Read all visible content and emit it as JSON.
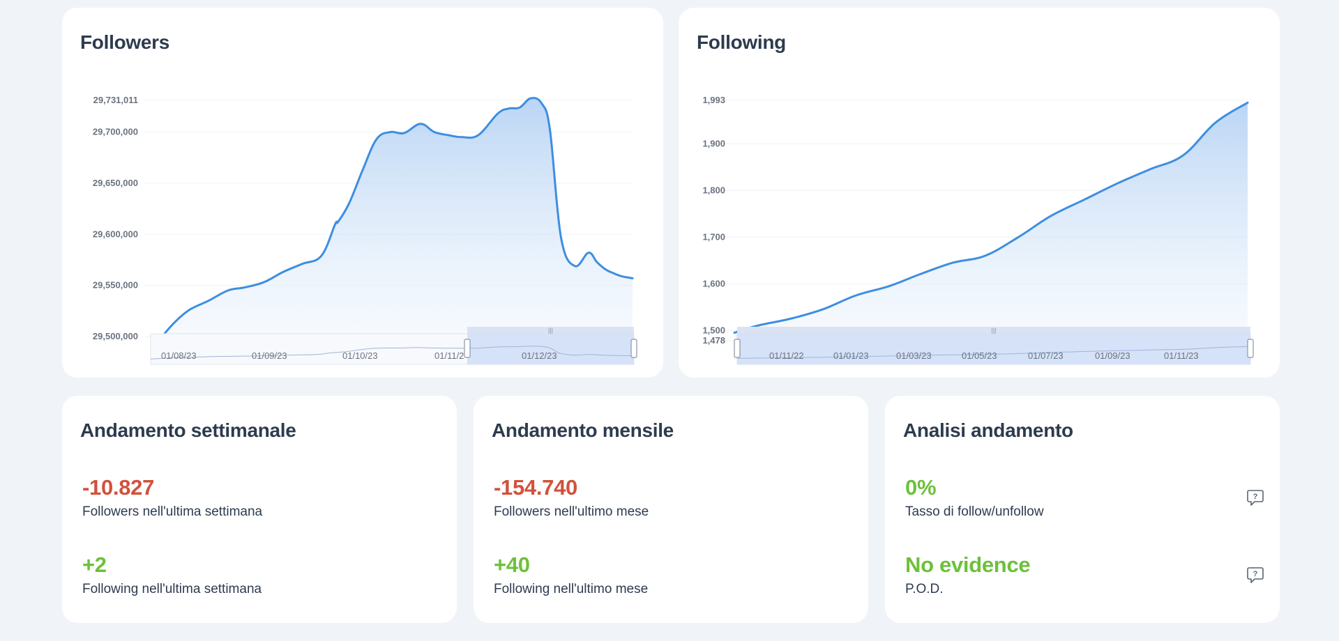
{
  "followers_card": {
    "title": "Followers"
  },
  "following_card": {
    "title": "Following"
  },
  "weekly_card": {
    "title": "Andamento settimanale",
    "followers_value": "-10.827",
    "followers_label": "Followers nell'ultima settimana",
    "following_value": "+2",
    "following_label": "Following nell'ultima settimana"
  },
  "monthly_card": {
    "title": "Andamento mensile",
    "followers_value": "-154.740",
    "followers_label": "Followers nell'ultimo mese",
    "following_value": "+40",
    "following_label": "Following nell'ultimo mese"
  },
  "analysis_card": {
    "title": "Analisi andamento",
    "rate_value": "0%",
    "rate_label": "Tasso di follow/unfollow",
    "pod_value": "No evidence",
    "pod_label": "P.O.D."
  },
  "colors": {
    "line": "#3d8ee0",
    "negative": "#d2513a",
    "positive": "#6cc13a"
  },
  "chart_data": [
    {
      "type": "area",
      "title": "Followers",
      "x_unit": "date",
      "yticks": [
        29500000,
        29550000,
        29600000,
        29650000,
        29700000,
        29731011
      ],
      "ytick_labels": [
        "29,500,000",
        "29,550,000",
        "29,600,000",
        "29,650,000",
        "29,700,000",
        "29,731,011"
      ],
      "ylim": [
        29500000,
        29731011
      ],
      "xlim": [
        "2023-07-28",
        "2024-01-16"
      ],
      "navigator_xticks": [
        "01/08/23",
        "01/09/23",
        "01/10/23",
        "01/11/2",
        "01/12/23"
      ],
      "grid": true,
      "series": [
        {
          "x": [
            "2023-07-28",
            "2023-08-02",
            "2023-08-08",
            "2023-08-15",
            "2023-08-22",
            "2023-08-28",
            "2023-09-04",
            "2023-09-11",
            "2023-09-18",
            "2023-09-25",
            "2023-09-30",
            "2023-10-01",
            "2023-10-05",
            "2023-10-10",
            "2023-10-15",
            "2023-10-20",
            "2023-10-25",
            "2023-10-31",
            "2023-11-05",
            "2023-11-10",
            "2023-11-15",
            "2023-11-21",
            "2023-11-28",
            "2023-12-02",
            "2023-12-06",
            "2023-12-10",
            "2023-12-14",
            "2023-12-17",
            "2023-12-21",
            "2023-12-26",
            "2023-12-31",
            "2024-01-03",
            "2024-01-06",
            "2024-01-09",
            "2024-01-12",
            "2024-01-16"
          ],
          "y": [
            29496000,
            29512000,
            29526000,
            29535000,
            29545000,
            29548000,
            29553000,
            29563000,
            29571000,
            29579000,
            29610000,
            29612000,
            29630000,
            29663000,
            29693000,
            29700000,
            29699000,
            29708000,
            29700000,
            29697000,
            29695000,
            29697000,
            29718000,
            29723000,
            29724000,
            29733000,
            29728000,
            29702000,
            29597000,
            29569000,
            29582000,
            29573000,
            29566000,
            29562000,
            29559000,
            29557000
          ]
        }
      ]
    },
    {
      "type": "area",
      "title": "Following",
      "x_unit": "date",
      "yticks": [
        1478,
        1500,
        1600,
        1700,
        1800,
        1900,
        1993
      ],
      "ytick_labels": [
        "1,478",
        "1,500",
        "1,600",
        "1,700",
        "1,800",
        "1,900",
        "1,993"
      ],
      "ylim": [
        1478,
        1993
      ],
      "xlim": [
        "2022-09-10",
        "2023-12-31"
      ],
      "navigator_xticks": [
        "01/11/22",
        "01/01/23",
        "01/03/23",
        "01/05/23",
        "01/07/23",
        "01/09/23",
        "01/11/23"
      ],
      "grid": true,
      "series": [
        {
          "x": [
            "2022-09-10",
            "2022-10-01",
            "2022-11-01",
            "2022-12-01",
            "2023-01-01",
            "2023-02-01",
            "2023-03-01",
            "2023-04-01",
            "2023-05-01",
            "2023-06-01",
            "2023-07-01",
            "2023-08-01",
            "2023-09-01",
            "2023-10-01",
            "2023-11-01",
            "2023-12-01",
            "2023-12-31"
          ],
          "y": [
            1495,
            1510,
            1525,
            1545,
            1575,
            1595,
            1620,
            1645,
            1660,
            1700,
            1745,
            1780,
            1815,
            1845,
            1875,
            1945,
            1988
          ]
        }
      ]
    }
  ]
}
